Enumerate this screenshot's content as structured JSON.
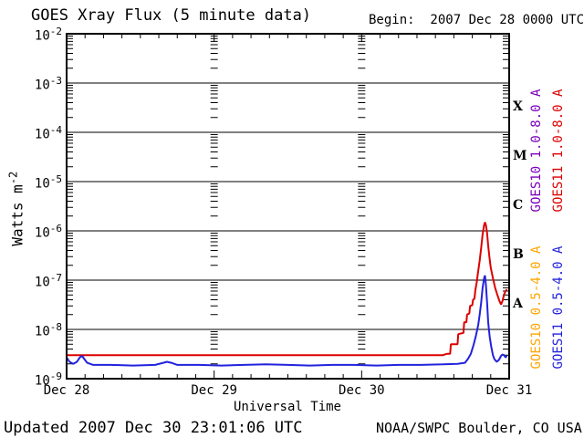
{
  "header": {
    "title": "GOES Xray Flux (5 minute data)",
    "begin": "Begin:  2007 Dec 28 0000 UTC"
  },
  "y_axis": {
    "label_base": "Watts m",
    "label_exp": "-2",
    "tick_base": "10",
    "tick_exponents": [
      "-2",
      "-3",
      "-4",
      "-5",
      "-6",
      "-7",
      "-8",
      "-9"
    ]
  },
  "x_axis": {
    "label": "Universal Time",
    "tick_labels": [
      "Dec 28",
      "Dec 29",
      "Dec 30",
      "Dec 31"
    ]
  },
  "right_axis": {
    "class_letters": [
      "X",
      "M",
      "C",
      "B",
      "A"
    ],
    "series_labels": [
      {
        "text": "GOES10 1.0-8.0 A",
        "color": "#7B00BB"
      },
      {
        "text": "GOES11 1.0-8.0 A",
        "color": "#DD0000"
      },
      {
        "text": "GOES10 0.5-4.0 A",
        "color": "#FFA500"
      },
      {
        "text": "GOES11 0.5-4.0 A",
        "color": "#2222DD"
      }
    ]
  },
  "footer": {
    "updated": "Updated 2007 Dec 30 23:01:06 UTC",
    "source": "NOAA/SWPC Boulder, CO USA"
  },
  "chart_data": {
    "type": "line",
    "title": "GOES Xray Flux (5 minute data)",
    "xlabel": "Universal Time",
    "ylabel": "Watts m^-2",
    "x_unit": "days since 2007 Dec 28 0000 UTC",
    "x_range_days": [
      0,
      3
    ],
    "x_day_tick_labels": [
      "Dec 28",
      "Dec 29",
      "Dec 30",
      "Dec 31"
    ],
    "y_scale": "log",
    "y_exponent_range": [
      -2,
      -9
    ],
    "grid": "solid horizontal line each decade; minor log ticks at axes and interior day lines",
    "flare_class_bands": {
      "A": "1e-8 to 1e-7",
      "B": "1e-7 to 1e-6",
      "C": "1e-6 to 1e-5",
      "M": "1e-5 to 1e-4",
      "X": "1e-4 to 1e-3"
    },
    "series": [
      {
        "name": "GOES11 1.0-8.0 A",
        "color": "#DD0000",
        "points": [
          [
            0.0,
            3e-09
          ],
          [
            0.2,
            3e-09
          ],
          [
            0.4,
            3e-09
          ],
          [
            0.6,
            3e-09
          ],
          [
            0.8,
            3e-09
          ],
          [
            1.0,
            3e-09
          ],
          [
            1.2,
            3e-09
          ],
          [
            1.4,
            3e-09
          ],
          [
            1.6,
            3e-09
          ],
          [
            1.8,
            3e-09
          ],
          [
            2.0,
            3e-09
          ],
          [
            2.2,
            3e-09
          ],
          [
            2.4,
            3e-09
          ],
          [
            2.55,
            3e-09
          ],
          [
            2.58,
            3.2e-09
          ],
          [
            2.6,
            3.2e-09
          ],
          [
            2.605,
            5e-09
          ],
          [
            2.65,
            5e-09
          ],
          [
            2.655,
            8e-09
          ],
          [
            2.69,
            8.5e-09
          ],
          [
            2.695,
            1.4e-08
          ],
          [
            2.71,
            1.4e-08
          ],
          [
            2.715,
            2e-08
          ],
          [
            2.73,
            2.1e-08
          ],
          [
            2.735,
            3e-08
          ],
          [
            2.75,
            3.1e-08
          ],
          [
            2.755,
            4e-08
          ],
          [
            2.765,
            4.2e-08
          ],
          [
            2.77,
            6e-08
          ],
          [
            2.78,
            9e-08
          ],
          [
            2.79,
            1.5e-07
          ],
          [
            2.8,
            2.5e-07
          ],
          [
            2.81,
            4.5e-07
          ],
          [
            2.82,
            8.5e-07
          ],
          [
            2.83,
            1.3e-06
          ],
          [
            2.836,
            1.5e-06
          ],
          [
            2.842,
            1.3e-06
          ],
          [
            2.85,
            9e-07
          ],
          [
            2.858,
            5e-07
          ],
          [
            2.866,
            3e-07
          ],
          [
            2.875,
            1.8e-07
          ],
          [
            2.89,
            1.1e-07
          ],
          [
            2.905,
            7e-08
          ],
          [
            2.92,
            5e-08
          ],
          [
            2.935,
            3.7e-08
          ],
          [
            2.945,
            3.2e-08
          ],
          [
            2.955,
            3.8e-08
          ],
          [
            2.965,
            5e-08
          ],
          [
            2.975,
            6e-08
          ],
          [
            2.985,
            6.5e-08
          ]
        ]
      },
      {
        "name": "GOES11 0.5-4.0 A",
        "color": "#2222DD",
        "points": [
          [
            0.0,
            2.7e-09
          ],
          [
            0.02,
            2.2e-09
          ],
          [
            0.045,
            2e-09
          ],
          [
            0.07,
            2.2e-09
          ],
          [
            0.09,
            2.7e-09
          ],
          [
            0.105,
            2.9e-09
          ],
          [
            0.12,
            2.5e-09
          ],
          [
            0.14,
            2.1e-09
          ],
          [
            0.18,
            1.9e-09
          ],
          [
            0.3,
            1.9e-09
          ],
          [
            0.45,
            1.85e-09
          ],
          [
            0.6,
            1.9e-09
          ],
          [
            0.655,
            2.1e-09
          ],
          [
            0.68,
            2.2e-09
          ],
          [
            0.71,
            2.1e-09
          ],
          [
            0.75,
            1.9e-09
          ],
          [
            0.9,
            1.9e-09
          ],
          [
            1.05,
            1.85e-09
          ],
          [
            1.2,
            1.9e-09
          ],
          [
            1.35,
            1.95e-09
          ],
          [
            1.5,
            1.9e-09
          ],
          [
            1.65,
            1.85e-09
          ],
          [
            1.8,
            1.9e-09
          ],
          [
            1.95,
            1.9e-09
          ],
          [
            2.1,
            1.85e-09
          ],
          [
            2.25,
            1.9e-09
          ],
          [
            2.4,
            1.9e-09
          ],
          [
            2.55,
            1.95e-09
          ],
          [
            2.65,
            2e-09
          ],
          [
            2.7,
            2.1e-09
          ],
          [
            2.72,
            2.5e-09
          ],
          [
            2.74,
            3.2e-09
          ],
          [
            2.76,
            5e-09
          ],
          [
            2.775,
            7.5e-09
          ],
          [
            2.79,
            1.2e-08
          ],
          [
            2.8,
            2e-08
          ],
          [
            2.81,
            3.5e-08
          ],
          [
            2.82,
            7e-08
          ],
          [
            2.83,
            1.1e-07
          ],
          [
            2.836,
            1.25e-07
          ],
          [
            2.842,
            8e-08
          ],
          [
            2.85,
            3.5e-08
          ],
          [
            2.858,
            1.4e-08
          ],
          [
            2.868,
            7e-09
          ],
          [
            2.878,
            4.5e-09
          ],
          [
            2.89,
            3e-09
          ],
          [
            2.9,
            2.5e-09
          ],
          [
            2.915,
            2.2e-09
          ],
          [
            2.93,
            2.4e-09
          ],
          [
            2.945,
            2.9e-09
          ],
          [
            2.955,
            3.1e-09
          ],
          [
            2.965,
            3e-09
          ],
          [
            2.975,
            2.7e-09
          ],
          [
            2.985,
            2.9e-09
          ]
        ]
      },
      {
        "name": "GOES10 1.0-8.0 A",
        "color": "#7B00BB",
        "points": []
      },
      {
        "name": "GOES10 0.5-4.0 A",
        "color": "#FFA500",
        "points": []
      }
    ]
  }
}
